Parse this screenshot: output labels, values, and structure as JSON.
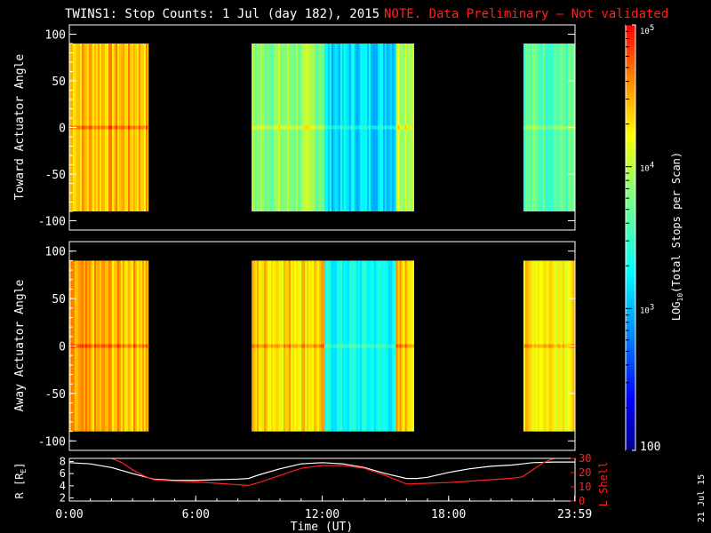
{
  "title": {
    "main": "TWINS1: Stop Counts:  1 Jul (day 182), 2015",
    "note": "NOTE. Data Preliminary – Not validated"
  },
  "colors": {
    "background": "#000000",
    "axis": "#ffffff",
    "note": "#ff2020",
    "l_shell": "#ff2020",
    "r_line": "#ffffff"
  },
  "colorbar": {
    "label_html": "LOG",
    "label": "LOG10(Total Stops per Scan)",
    "label_prefix": "LOG",
    "label_sub": "10",
    "label_suffix": "(Total Stops per Scan)",
    "ticks": [
      {
        "value": 100000,
        "text": "10",
        "sup": "5"
      },
      {
        "value": 10000,
        "text": "10",
        "sup": "4"
      },
      {
        "value": 1000,
        "text": "10",
        "sup": "3"
      },
      {
        "value": 100,
        "text": "100",
        "sup": ""
      }
    ],
    "range": [
      100,
      100000
    ],
    "scale": "log"
  },
  "datestamp": "21 Jul 15",
  "chart_data": [
    {
      "type": "heatmap",
      "name": "toward",
      "ylabel": "Toward Actuator Angle",
      "ylim": [
        -110,
        110
      ],
      "yticks": [
        100,
        50,
        0,
        -50,
        -100
      ],
      "xlim": [
        0,
        24
      ],
      "data_angle_range": [
        -90,
        90
      ],
      "segments": [
        {
          "start": 0.0,
          "end": 3.75,
          "level": 4.45
        },
        {
          "start": 8.65,
          "end": 12.1,
          "level": 3.85
        },
        {
          "start": 12.1,
          "end": 15.5,
          "level": 3.15
        },
        {
          "start": 15.5,
          "end": 16.35,
          "level": 4.05
        },
        {
          "start": 21.55,
          "end": 24.0,
          "level": 3.65
        }
      ]
    },
    {
      "type": "heatmap",
      "name": "away",
      "ylabel": "Away Actuator Angle",
      "ylim": [
        -110,
        110
      ],
      "yticks": [
        100,
        50,
        0,
        -50,
        -100
      ],
      "xlim": [
        0,
        24
      ],
      "data_angle_range": [
        -90,
        90
      ],
      "segments": [
        {
          "start": 0.0,
          "end": 3.75,
          "level": 4.45
        },
        {
          "start": 8.65,
          "end": 12.1,
          "level": 4.35
        },
        {
          "start": 12.1,
          "end": 15.5,
          "level": 3.3
        },
        {
          "start": 15.5,
          "end": 16.35,
          "level": 4.4
        },
        {
          "start": 21.55,
          "end": 24.0,
          "level": 4.3
        }
      ]
    },
    {
      "type": "line",
      "name": "orbit",
      "ylabel_left": "R [R",
      "ylabel_left_sub": "E",
      "ylabel_left_end": "]",
      "ylabel_right": "L Shell",
      "yleft_ticks": [
        8,
        6,
        4,
        2
      ],
      "yleft_lim": [
        1.5,
        8.5
      ],
      "yright_ticks": [
        30,
        20,
        10,
        0
      ],
      "yright_lim": [
        0,
        30
      ],
      "xlabel": "Time (UT)",
      "xticks": [
        {
          "value": 0,
          "label": "0:00"
        },
        {
          "value": 6,
          "label": "6:00"
        },
        {
          "value": 12,
          "label": "12:00"
        },
        {
          "value": 18,
          "label": "18:00"
        },
        {
          "value": 23.983,
          "label": "23:59"
        }
      ],
      "series": [
        {
          "name": "R",
          "axis": "left",
          "x": [
            0,
            1,
            2,
            3,
            4,
            5,
            6,
            7,
            8,
            8.5,
            9,
            10,
            11,
            12,
            13,
            14,
            15,
            16,
            16.5,
            17,
            18,
            19,
            20,
            21,
            21.5,
            22,
            23,
            24
          ],
          "y": [
            7.8,
            7.6,
            7.0,
            6.0,
            5.1,
            4.9,
            4.9,
            5.0,
            5.1,
            5.2,
            5.8,
            6.8,
            7.6,
            7.8,
            7.6,
            7.0,
            6.0,
            5.2,
            5.2,
            5.4,
            6.2,
            6.8,
            7.2,
            7.4,
            7.6,
            7.8,
            7.9,
            7.9
          ]
        },
        {
          "name": "L Shell",
          "axis": "right",
          "x": [
            2,
            2.5,
            3,
            3.5,
            4,
            5,
            6,
            7,
            8,
            8.5,
            9,
            10,
            11,
            12,
            13,
            14,
            15,
            16,
            17,
            18,
            19,
            20,
            21,
            21.5,
            22,
            22.5,
            23
          ],
          "y": [
            30,
            27,
            22,
            18,
            15,
            14,
            13.5,
            12.5,
            11.5,
            11,
            13,
            18,
            23,
            25,
            25,
            23,
            18,
            12,
            12.5,
            13,
            14,
            15,
            16,
            17,
            22,
            27,
            30
          ]
        }
      ]
    }
  ]
}
